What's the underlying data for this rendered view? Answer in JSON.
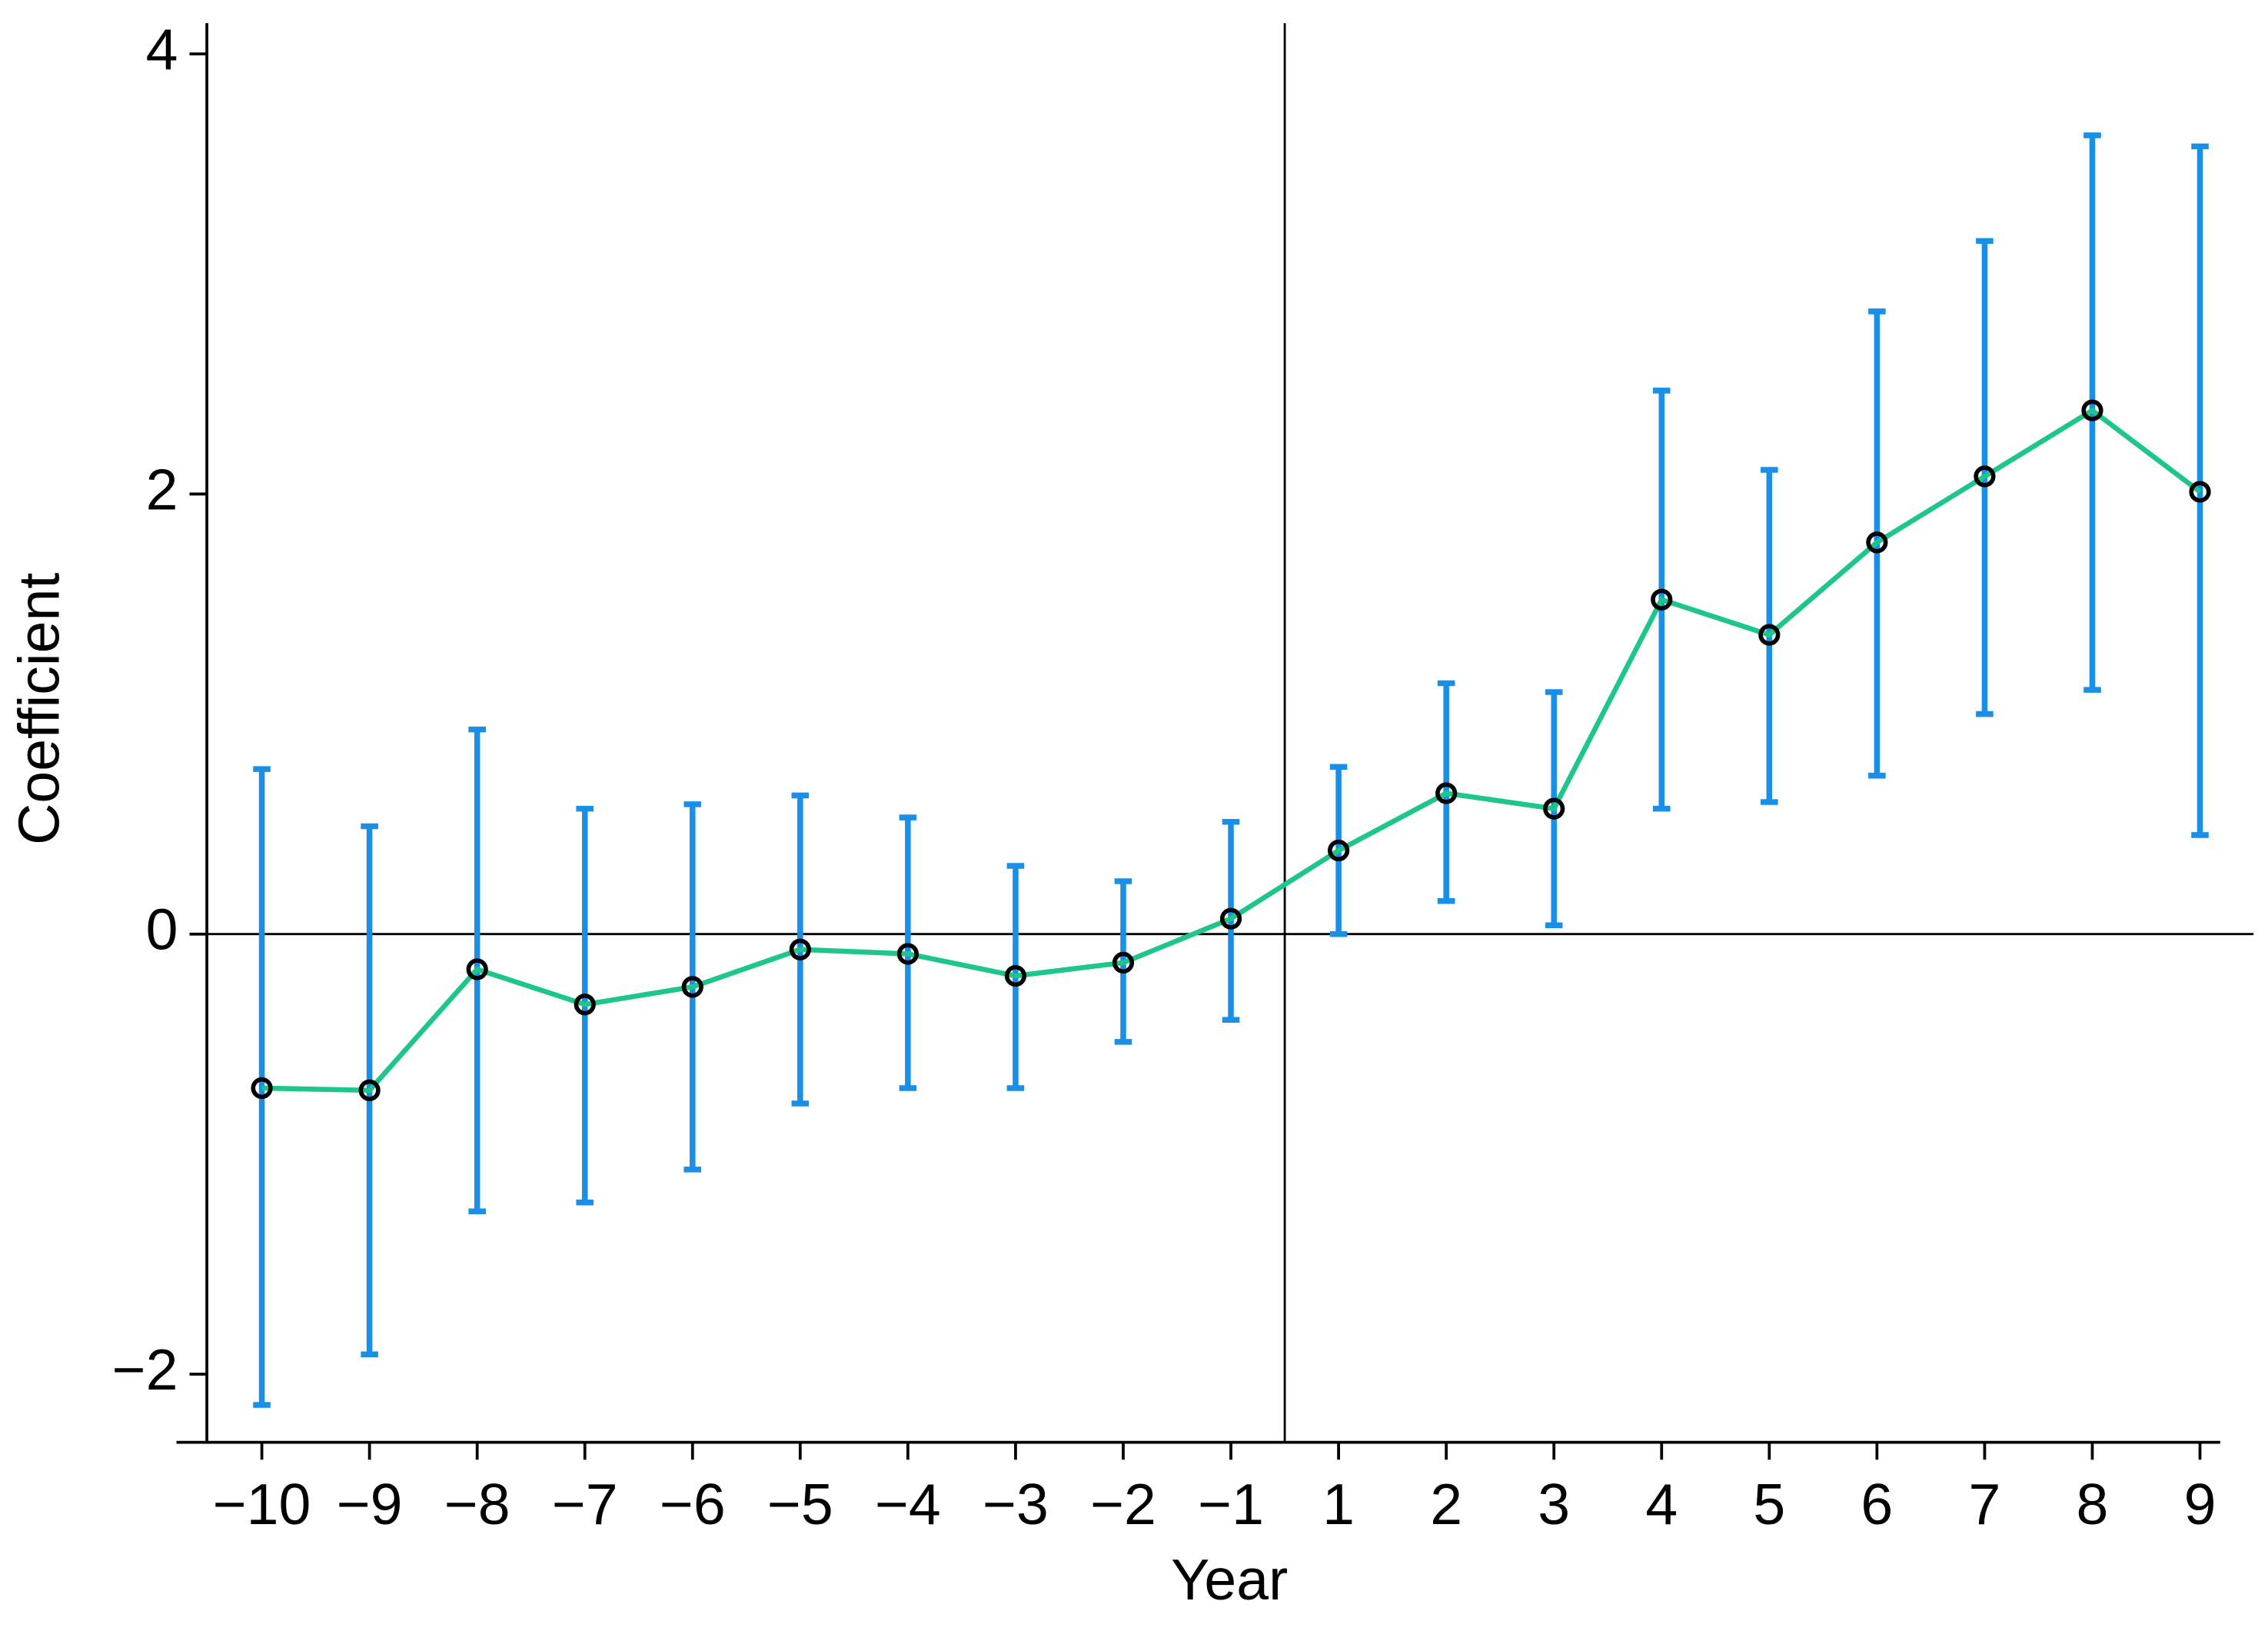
{
  "chart_data": {
    "type": "line",
    "x_label": "Year",
    "y_label": "Coefficient",
    "categories": [
      "−10",
      "−9",
      "−8",
      "−7",
      "−6",
      "−5",
      "−4",
      "−3",
      "−2",
      "−1",
      "1",
      "2",
      "3",
      "4",
      "5",
      "6",
      "7",
      "8",
      "9"
    ],
    "series": [
      {
        "name": "Coefficient",
        "color": "#1fc68a",
        "marker_color": "#000000",
        "error_color": "#1a8fe8",
        "values": [
          -0.7,
          -0.71,
          -0.16,
          -0.32,
          -0.24,
          -0.07,
          -0.09,
          -0.19,
          -0.13,
          0.07,
          0.38,
          0.64,
          0.57,
          1.52,
          1.36,
          1.78,
          2.08,
          2.38,
          2.01
        ],
        "lower": [
          -2.14,
          -1.91,
          -1.26,
          -1.22,
          -1.07,
          -0.77,
          -0.7,
          -0.7,
          -0.49,
          -0.39,
          0.0,
          0.15,
          0.04,
          0.57,
          0.6,
          0.72,
          1.0,
          1.11,
          0.45
        ],
        "upper": [
          0.75,
          0.49,
          0.93,
          0.57,
          0.59,
          0.63,
          0.53,
          0.31,
          0.24,
          0.51,
          0.76,
          1.14,
          1.1,
          2.47,
          2.11,
          2.83,
          3.15,
          3.63,
          3.58
        ]
      }
    ],
    "ylim": [
      -2.31,
      4.14
    ],
    "yticks": [
      {
        "value": -2,
        "label": "−2"
      },
      0,
      2,
      4
    ],
    "reference_line_y": 0,
    "grid": false
  }
}
